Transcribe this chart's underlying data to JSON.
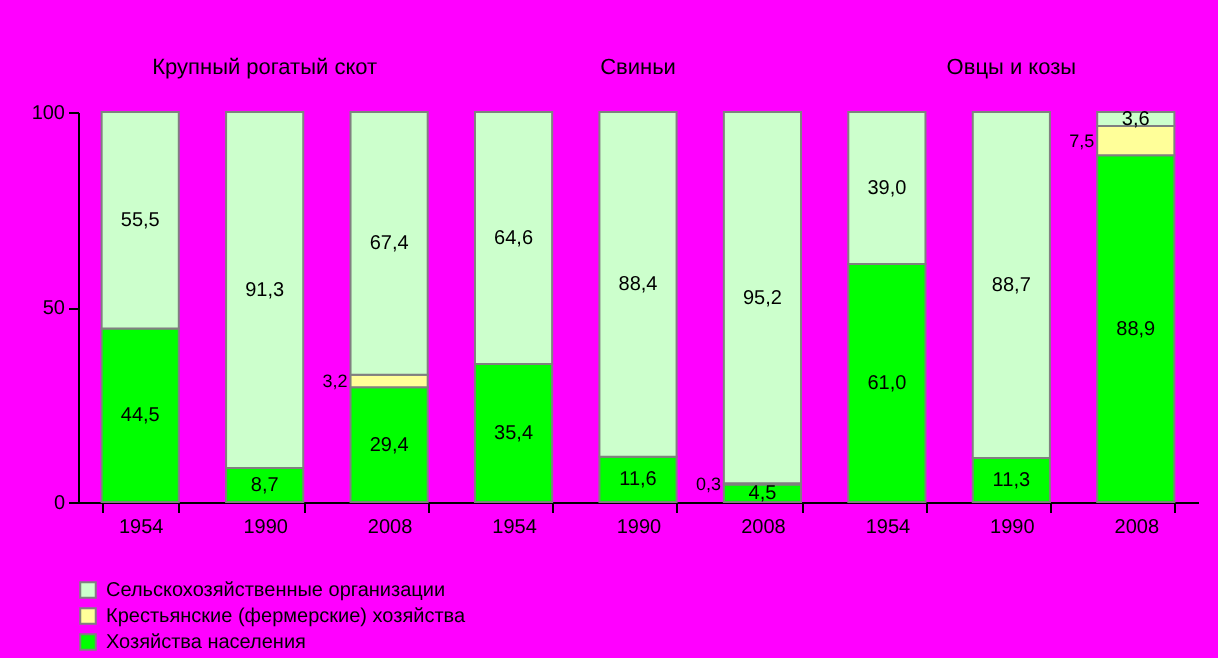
{
  "chart_data": {
    "type": "bar",
    "stacked": true,
    "categories": [
      "1954",
      "1990",
      "2008",
      "1954",
      "1990",
      "2008",
      "1954",
      "1990",
      "2008"
    ],
    "annotations": [
      "Крупный рогатый скот",
      "Свиньи",
      "Овцы и козы"
    ],
    "series": [
      {
        "name": "Хозяйства населения",
        "color": "#00ff00",
        "values": [
          44.5,
          8.7,
          29.4,
          35.4,
          11.6,
          4.5,
          61.0,
          11.3,
          88.9
        ],
        "value_labels": [
          "44,5",
          "8,7",
          "29,4",
          "35,4",
          "11,6",
          "4,5",
          "61,0",
          "11,3",
          "88,9"
        ]
      },
      {
        "name": "Крестьянские (фермерские) хозяйства",
        "color": "#ffff99",
        "values": [
          null,
          null,
          3.2,
          null,
          null,
          0.3,
          null,
          null,
          7.5
        ],
        "value_labels": [
          null,
          null,
          "3,2",
          null,
          null,
          "0,3",
          null,
          null,
          "7,5"
        ]
      },
      {
        "name": "Сельскохозяйственные организации",
        "color": "#ccffcc",
        "values": [
          55.5,
          91.3,
          67.4,
          64.6,
          88.4,
          95.2,
          39.0,
          88.7,
          3.6
        ],
        "value_labels": [
          "55,5",
          "91,3",
          "67,4",
          "64,6",
          "88,4",
          "95,2",
          "39,0",
          "88,7",
          "3,6"
        ]
      }
    ],
    "ylim": [
      0,
      100
    ],
    "yticks": [
      0,
      50,
      100
    ],
    "grid": false,
    "legend": "bottom"
  }
}
